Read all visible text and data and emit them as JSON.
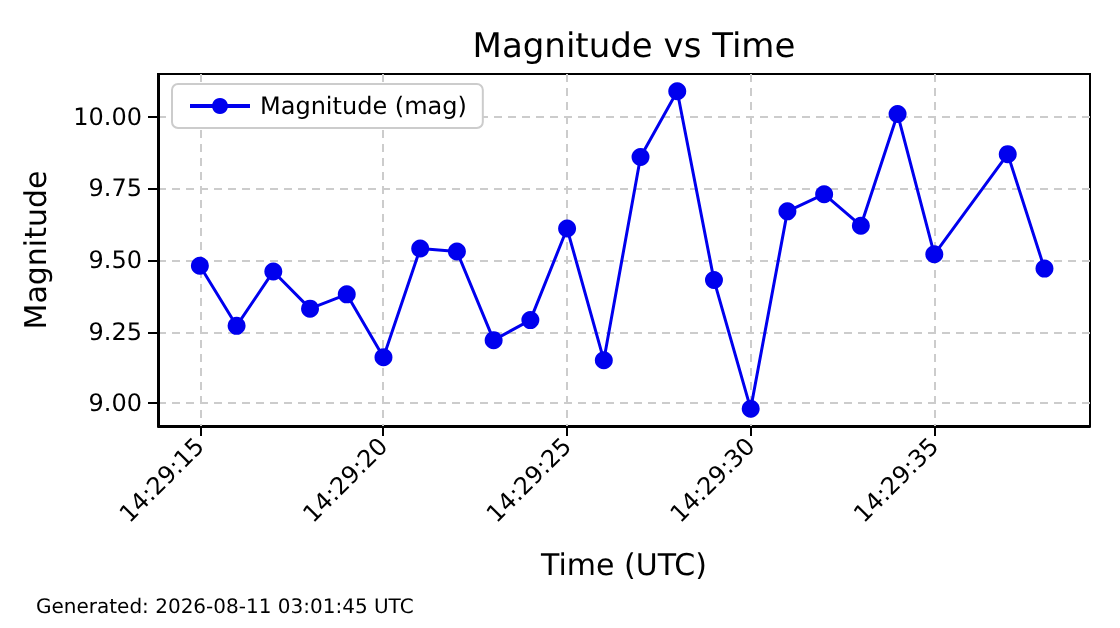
{
  "chart_data": {
    "type": "line",
    "title": "Magnitude vs Time",
    "xlabel": "Time (UTC)",
    "ylabel": "Magnitude",
    "x": [
      14.4875,
      14.4877778,
      14.4880556,
      14.4883333,
      14.4886111,
      14.4888889,
      14.4891667,
      14.4894444,
      14.4897222,
      14.49,
      14.4902778,
      14.4905556,
      14.4908333,
      14.4911111,
      14.4913889,
      14.4916667,
      14.4919444,
      14.4922222,
      14.4925,
      14.4927778,
      14.4930556,
      14.4936111,
      14.4938889
    ],
    "series": [
      {
        "name": "Magnitude (mag)",
        "color": "#0000ee",
        "values": [
          9.48,
          9.27,
          9.46,
          9.33,
          9.38,
          9.16,
          9.54,
          9.53,
          9.22,
          9.29,
          9.61,
          9.15,
          9.86,
          10.09,
          9.43,
          8.98,
          9.67,
          9.73,
          9.62,
          10.01,
          9.52,
          9.87,
          9.47
        ]
      }
    ],
    "xlim": [
      14.4871833,
      14.4942333
    ],
    "xticks": [
      {
        "value": 14.4875,
        "label": "14:29:15"
      },
      {
        "value": 14.4888889,
        "label": "14:29:20"
      },
      {
        "value": 14.4902778,
        "label": "14:29:25"
      },
      {
        "value": 14.4916667,
        "label": "14:29:30"
      },
      {
        "value": 14.4930556,
        "label": "14:29:35"
      }
    ],
    "ylim": [
      8.92,
      10.15
    ],
    "yticks": [
      {
        "value": 9,
        "label": "9.00"
      },
      {
        "value": 9.25,
        "label": "9.25"
      },
      {
        "value": 9.5,
        "label": "9.50"
      },
      {
        "value": 9.75,
        "label": "9.75"
      },
      {
        "value": 10,
        "label": "10.00"
      }
    ],
    "grid": true,
    "legend": "top left",
    "marker": "circle",
    "line_style": "solid",
    "annotations": [
      "Generated: 2026-08-11 03:01:45 UTC"
    ]
  }
}
